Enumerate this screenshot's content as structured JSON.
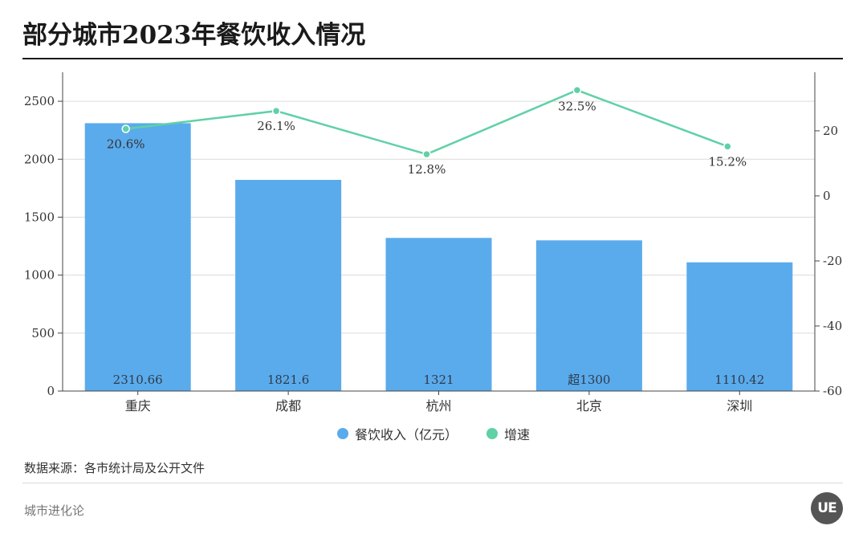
{
  "title": "部分城市2023年餐饮收入情况",
  "source": "数据来源：各市统计局及公开文件",
  "brand": "城市进化论",
  "logo_text": "UE",
  "colors": {
    "bar": "#5aabec",
    "line": "#5fd1a6",
    "bar_label": "#2e3b4a"
  },
  "chart_data": {
    "type": "bar",
    "categories": [
      "重庆",
      "成都",
      "杭州",
      "北京",
      "深圳"
    ],
    "series": [
      {
        "name": "餐饮收入（亿元）",
        "type": "bar",
        "axis": "left",
        "values": [
          2310.66,
          1821.6,
          1321,
          1300,
          1110.42
        ]
      },
      {
        "name": "增速",
        "type": "line",
        "axis": "right",
        "values": [
          20.6,
          26.1,
          12.8,
          32.5,
          15.2
        ]
      }
    ],
    "bar_labels": [
      "2310.66",
      "1821.6",
      "1321",
      "超1300",
      "1110.42"
    ],
    "line_labels": [
      "20.6%",
      "26.1%",
      "12.8%",
      "32.5%",
      "15.2%"
    ],
    "ylim_left": [
      0,
      2750
    ],
    "yticks_left": [
      0,
      500,
      1000,
      1500,
      2000,
      2500
    ],
    "ylim_right": [
      -60,
      38
    ],
    "yticks_right": [
      -60,
      -40,
      -20,
      0,
      20
    ],
    "grid": true,
    "legend_position": "bottom-center"
  }
}
